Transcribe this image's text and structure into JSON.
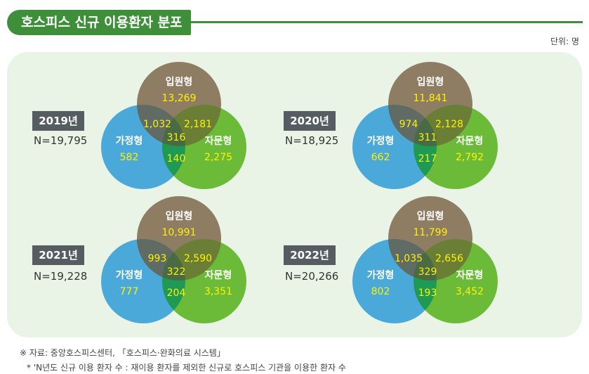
{
  "header": {
    "title": "호스피스 신규 이용환자 분포",
    "unit": "단위: 명"
  },
  "colors": {
    "inpatient": "#8f7d63",
    "home": "#4ba9d9",
    "consult": "#6cbb38",
    "inpatient_home": "#5f6b63",
    "inpatient_consult": "#6a7e36",
    "home_consult": "#1f9a55",
    "all_three": "#4a6a44",
    "highlight": "#fff200"
  },
  "chart_data": [
    {
      "type": "venn",
      "year_label": "2019년",
      "n_label": "N=19,795",
      "sets": [
        "입원형",
        "가정형",
        "자문형"
      ],
      "regions": {
        "inpatient_only": "13,269",
        "home_only": "582",
        "consult_only": "2,275",
        "inpatient_home": "1,032",
        "inpatient_consult": "2,181",
        "home_consult": "140",
        "all_three": "316"
      }
    },
    {
      "type": "venn",
      "year_label": "2020년",
      "n_label": "N=18,925",
      "sets": [
        "입원형",
        "가정형",
        "자문형"
      ],
      "regions": {
        "inpatient_only": "11,841",
        "home_only": "662",
        "consult_only": "2,792",
        "inpatient_home": "974",
        "inpatient_consult": "2,128",
        "home_consult": "217",
        "all_three": "311"
      }
    },
    {
      "type": "venn",
      "year_label": "2021년",
      "n_label": "N=19,228",
      "sets": [
        "입원형",
        "가정형",
        "자문형"
      ],
      "regions": {
        "inpatient_only": "10,991",
        "home_only": "777",
        "consult_only": "3,351",
        "inpatient_home": "993",
        "inpatient_consult": "2,590",
        "home_consult": "204",
        "all_three": "322"
      }
    },
    {
      "type": "venn",
      "year_label": "2022년",
      "n_label": "N=20,266",
      "sets": [
        "입원형",
        "가정형",
        "자문형"
      ],
      "regions": {
        "inpatient_only": "11,799",
        "home_only": "802",
        "consult_only": "3,452",
        "inpatient_home": "1,035",
        "inpatient_consult": "2,656",
        "home_consult": "193",
        "all_three": "329"
      }
    }
  ],
  "notes": {
    "source": "※ 자료: 중앙호스피스센터, 「호스피스·완화의료 시스템」",
    "footnote": "* 'N년도 신규 이용 환자 수 : 재이용 환자를 제외한 신규로 호스피스 기관을 이용한 환자 수"
  }
}
